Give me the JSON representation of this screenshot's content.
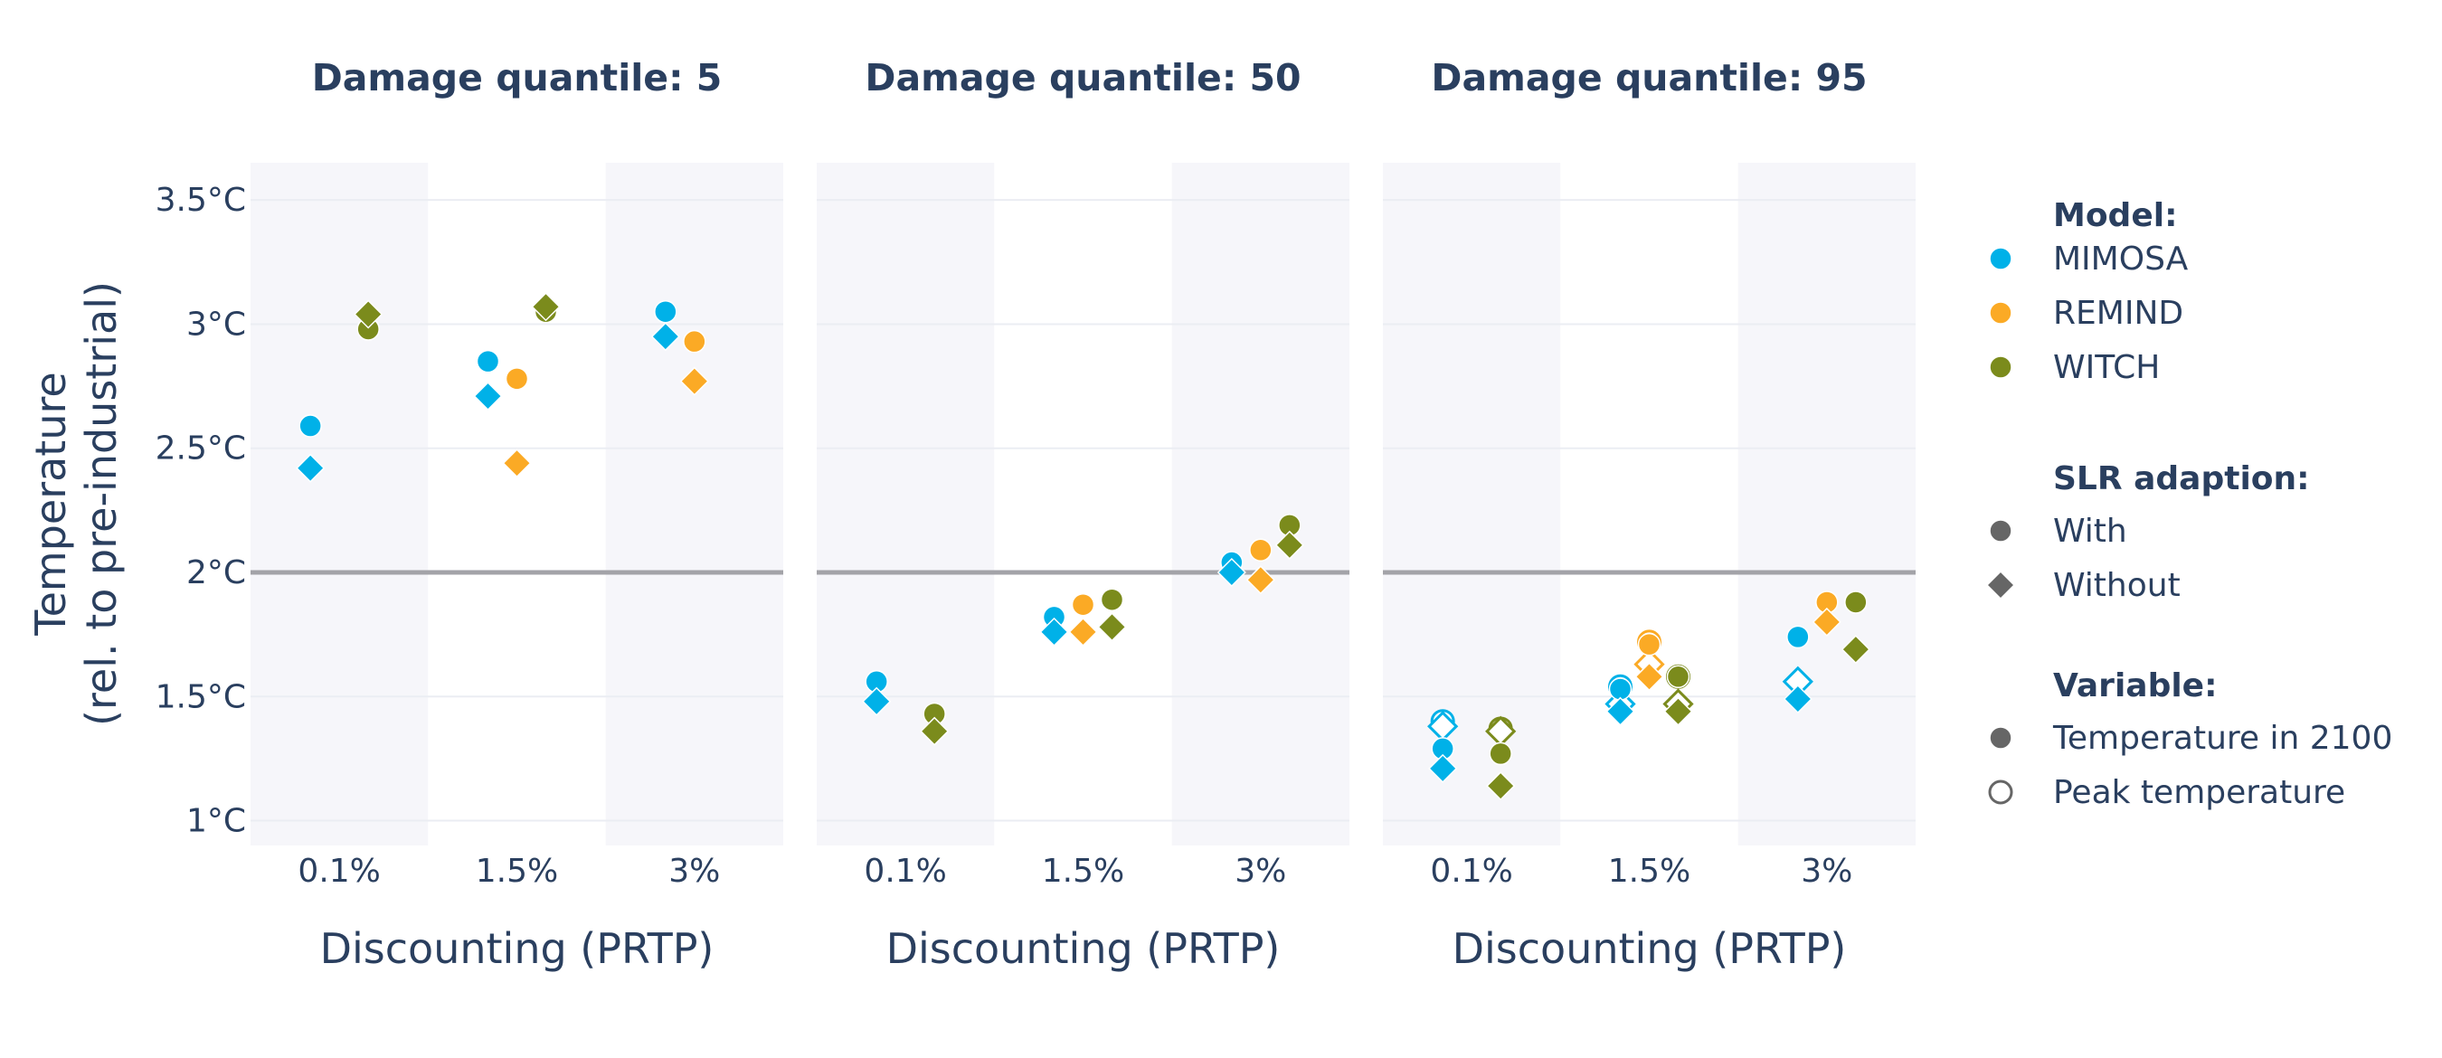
{
  "chart_data": {
    "type": "scatter",
    "panels": [
      {
        "title": "Damage quantile: 5"
      },
      {
        "title": "Damage quantile: 50"
      },
      {
        "title": "Damage quantile: 95"
      }
    ],
    "categories": [
      "0.1%",
      "1.5%",
      "3%"
    ],
    "xlabel": "Discounting (PRTP)",
    "ylabel_lines": [
      "Temperature",
      "(rel. to pre-industrial)"
    ],
    "ylim": [
      0.9,
      3.65
    ],
    "yticks": [
      {
        "value": 1,
        "label": "1°C"
      },
      {
        "value": 1.5,
        "label": "1.5°C"
      },
      {
        "value": 2,
        "label": "2°C"
      },
      {
        "value": 2.5,
        "label": "2.5°C"
      },
      {
        "value": 3,
        "label": "3°C"
      },
      {
        "value": 3.5,
        "label": "3.5°C"
      }
    ],
    "reference_line": 2,
    "shaded_categories": [
      "0.1%",
      "3%"
    ],
    "models": [
      {
        "name": "MIMOSA",
        "color": "#00b1e8"
      },
      {
        "name": "REMIND",
        "color": "#fbaa25"
      },
      {
        "name": "WITCH",
        "color": "#7b8b1c"
      }
    ],
    "legend": {
      "model_title": "Model:",
      "slr_title": "SLR adaption:",
      "slr_items": [
        {
          "name": "With",
          "symbol": "circle"
        },
        {
          "name": "Without",
          "symbol": "diamond"
        }
      ],
      "variable_title": "Variable:",
      "variable_items": [
        {
          "name": "Temperature in 2100",
          "fill": "filled"
        },
        {
          "name": "Peak temperature",
          "fill": "open"
        }
      ],
      "symbol_color": "#666666",
      "placement": "right"
    },
    "points": [
      {
        "panel": 0,
        "model": "MIMOSA",
        "cat": "0.1%",
        "slr": "With",
        "variable": "Temperature in 2100",
        "y": 2.59
      },
      {
        "panel": 0,
        "model": "MIMOSA",
        "cat": "0.1%",
        "slr": "Without",
        "variable": "Temperature in 2100",
        "y": 2.42
      },
      {
        "panel": 0,
        "model": "WITCH",
        "cat": "0.1%",
        "slr": "With",
        "variable": "Temperature in 2100",
        "y": 2.98
      },
      {
        "panel": 0,
        "model": "WITCH",
        "cat": "0.1%",
        "slr": "Without",
        "variable": "Temperature in 2100",
        "y": 3.04
      },
      {
        "panel": 0,
        "model": "MIMOSA",
        "cat": "1.5%",
        "slr": "With",
        "variable": "Temperature in 2100",
        "y": 2.85
      },
      {
        "panel": 0,
        "model": "MIMOSA",
        "cat": "1.5%",
        "slr": "Without",
        "variable": "Temperature in 2100",
        "y": 2.71
      },
      {
        "panel": 0,
        "model": "REMIND",
        "cat": "1.5%",
        "slr": "With",
        "variable": "Temperature in 2100",
        "y": 2.78
      },
      {
        "panel": 0,
        "model": "REMIND",
        "cat": "1.5%",
        "slr": "Without",
        "variable": "Temperature in 2100",
        "y": 2.44
      },
      {
        "panel": 0,
        "model": "WITCH",
        "cat": "1.5%",
        "slr": "With",
        "variable": "Temperature in 2100",
        "y": 3.05
      },
      {
        "panel": 0,
        "model": "WITCH",
        "cat": "1.5%",
        "slr": "Without",
        "variable": "Temperature in 2100",
        "y": 3.07
      },
      {
        "panel": 0,
        "model": "MIMOSA",
        "cat": "3%",
        "slr": "With",
        "variable": "Temperature in 2100",
        "y": 3.05
      },
      {
        "panel": 0,
        "model": "MIMOSA",
        "cat": "3%",
        "slr": "Without",
        "variable": "Temperature in 2100",
        "y": 2.95
      },
      {
        "panel": 0,
        "model": "REMIND",
        "cat": "3%",
        "slr": "With",
        "variable": "Temperature in 2100",
        "y": 2.93
      },
      {
        "panel": 0,
        "model": "REMIND",
        "cat": "3%",
        "slr": "Without",
        "variable": "Temperature in 2100",
        "y": 2.77
      },
      {
        "panel": 1,
        "model": "MIMOSA",
        "cat": "0.1%",
        "slr": "With",
        "variable": "Temperature in 2100",
        "y": 1.56
      },
      {
        "panel": 1,
        "model": "MIMOSA",
        "cat": "0.1%",
        "slr": "Without",
        "variable": "Temperature in 2100",
        "y": 1.48
      },
      {
        "panel": 1,
        "model": "WITCH",
        "cat": "0.1%",
        "slr": "With",
        "variable": "Temperature in 2100",
        "y": 1.43
      },
      {
        "panel": 1,
        "model": "WITCH",
        "cat": "0.1%",
        "slr": "Without",
        "variable": "Temperature in 2100",
        "y": 1.36
      },
      {
        "panel": 1,
        "model": "MIMOSA",
        "cat": "1.5%",
        "slr": "With",
        "variable": "Temperature in 2100",
        "y": 1.82
      },
      {
        "panel": 1,
        "model": "MIMOSA",
        "cat": "1.5%",
        "slr": "Without",
        "variable": "Temperature in 2100",
        "y": 1.76
      },
      {
        "panel": 1,
        "model": "REMIND",
        "cat": "1.5%",
        "slr": "With",
        "variable": "Temperature in 2100",
        "y": 1.87
      },
      {
        "panel": 1,
        "model": "REMIND",
        "cat": "1.5%",
        "slr": "Without",
        "variable": "Temperature in 2100",
        "y": 1.76
      },
      {
        "panel": 1,
        "model": "WITCH",
        "cat": "1.5%",
        "slr": "With",
        "variable": "Temperature in 2100",
        "y": 1.89
      },
      {
        "panel": 1,
        "model": "WITCH",
        "cat": "1.5%",
        "slr": "Without",
        "variable": "Temperature in 2100",
        "y": 1.78
      },
      {
        "panel": 1,
        "model": "MIMOSA",
        "cat": "3%",
        "slr": "With",
        "variable": "Temperature in 2100",
        "y": 2.04
      },
      {
        "panel": 1,
        "model": "MIMOSA",
        "cat": "3%",
        "slr": "Without",
        "variable": "Temperature in 2100",
        "y": 2.0
      },
      {
        "panel": 1,
        "model": "REMIND",
        "cat": "3%",
        "slr": "With",
        "variable": "Temperature in 2100",
        "y": 2.09
      },
      {
        "panel": 1,
        "model": "REMIND",
        "cat": "3%",
        "slr": "Without",
        "variable": "Temperature in 2100",
        "y": 1.97
      },
      {
        "panel": 1,
        "model": "WITCH",
        "cat": "3%",
        "slr": "With",
        "variable": "Temperature in 2100",
        "y": 2.19
      },
      {
        "panel": 1,
        "model": "WITCH",
        "cat": "3%",
        "slr": "Without",
        "variable": "Temperature in 2100",
        "y": 2.11
      },
      {
        "panel": 2,
        "model": "MIMOSA",
        "cat": "0.1%",
        "slr": "With",
        "variable": "Peak temperature",
        "y": 1.4
      },
      {
        "panel": 2,
        "model": "MIMOSA",
        "cat": "0.1%",
        "slr": "Without",
        "variable": "Peak temperature",
        "y": 1.38
      },
      {
        "panel": 2,
        "model": "MIMOSA",
        "cat": "0.1%",
        "slr": "With",
        "variable": "Temperature in 2100",
        "y": 1.29
      },
      {
        "panel": 2,
        "model": "MIMOSA",
        "cat": "0.1%",
        "slr": "Without",
        "variable": "Temperature in 2100",
        "y": 1.21
      },
      {
        "panel": 2,
        "model": "WITCH",
        "cat": "0.1%",
        "slr": "With",
        "variable": "Peak temperature",
        "y": 1.37
      },
      {
        "panel": 2,
        "model": "WITCH",
        "cat": "0.1%",
        "slr": "Without",
        "variable": "Peak temperature",
        "y": 1.36
      },
      {
        "panel": 2,
        "model": "WITCH",
        "cat": "0.1%",
        "slr": "With",
        "variable": "Temperature in 2100",
        "y": 1.27
      },
      {
        "panel": 2,
        "model": "WITCH",
        "cat": "0.1%",
        "slr": "Without",
        "variable": "Temperature in 2100",
        "y": 1.14
      },
      {
        "panel": 2,
        "model": "MIMOSA",
        "cat": "1.5%",
        "slr": "With",
        "variable": "Peak temperature",
        "y": 1.54
      },
      {
        "panel": 2,
        "model": "MIMOSA",
        "cat": "1.5%",
        "slr": "Without",
        "variable": "Peak temperature",
        "y": 1.47
      },
      {
        "panel": 2,
        "model": "MIMOSA",
        "cat": "1.5%",
        "slr": "With",
        "variable": "Temperature in 2100",
        "y": 1.53
      },
      {
        "panel": 2,
        "model": "MIMOSA",
        "cat": "1.5%",
        "slr": "Without",
        "variable": "Temperature in 2100",
        "y": 1.44
      },
      {
        "panel": 2,
        "model": "REMIND",
        "cat": "1.5%",
        "slr": "With",
        "variable": "Peak temperature",
        "y": 1.72
      },
      {
        "panel": 2,
        "model": "REMIND",
        "cat": "1.5%",
        "slr": "Without",
        "variable": "Peak temperature",
        "y": 1.63
      },
      {
        "panel": 2,
        "model": "REMIND",
        "cat": "1.5%",
        "slr": "With",
        "variable": "Temperature in 2100",
        "y": 1.71
      },
      {
        "panel": 2,
        "model": "REMIND",
        "cat": "1.5%",
        "slr": "Without",
        "variable": "Temperature in 2100",
        "y": 1.58
      },
      {
        "panel": 2,
        "model": "WITCH",
        "cat": "1.5%",
        "slr": "With",
        "variable": "Peak temperature",
        "y": 1.58
      },
      {
        "panel": 2,
        "model": "WITCH",
        "cat": "1.5%",
        "slr": "Without",
        "variable": "Peak temperature",
        "y": 1.47
      },
      {
        "panel": 2,
        "model": "WITCH",
        "cat": "1.5%",
        "slr": "With",
        "variable": "Temperature in 2100",
        "y": 1.58
      },
      {
        "panel": 2,
        "model": "WITCH",
        "cat": "1.5%",
        "slr": "Without",
        "variable": "Temperature in 2100",
        "y": 1.44
      },
      {
        "panel": 2,
        "model": "MIMOSA",
        "cat": "3%",
        "slr": "With",
        "variable": "Temperature in 2100",
        "y": 1.74
      },
      {
        "panel": 2,
        "model": "MIMOSA",
        "cat": "3%",
        "slr": "Without",
        "variable": "Peak temperature",
        "y": 1.56
      },
      {
        "panel": 2,
        "model": "MIMOSA",
        "cat": "3%",
        "slr": "Without",
        "variable": "Temperature in 2100",
        "y": 1.49
      },
      {
        "panel": 2,
        "model": "REMIND",
        "cat": "3%",
        "slr": "With",
        "variable": "Temperature in 2100",
        "y": 1.88
      },
      {
        "panel": 2,
        "model": "REMIND",
        "cat": "3%",
        "slr": "Without",
        "variable": "Temperature in 2100",
        "y": 1.8
      },
      {
        "panel": 2,
        "model": "WITCH",
        "cat": "3%",
        "slr": "With",
        "variable": "Temperature in 2100",
        "y": 1.88
      },
      {
        "panel": 2,
        "model": "WITCH",
        "cat": "3%",
        "slr": "Without",
        "variable": "Temperature in 2100",
        "y": 1.69
      }
    ]
  }
}
